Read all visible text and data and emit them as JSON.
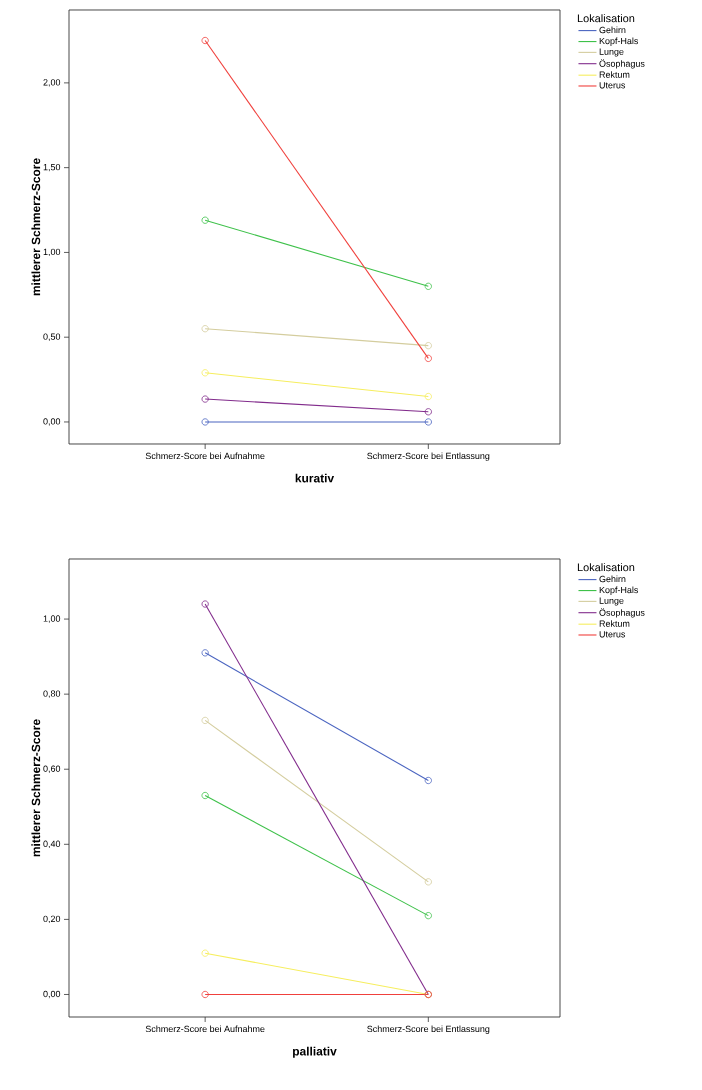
{
  "chart_data": [
    {
      "type": "line",
      "xlabel": "kurativ",
      "ylabel": "mittlerer Schmerz-Score",
      "legend_title": "Lokalisation",
      "legend": "right",
      "marker": "circle",
      "categories": [
        "Schmerz-Score bei Aufnahme",
        "Schmerz-Score bei Entlassung"
      ],
      "ylim": [
        -0.13,
        2.43
      ],
      "yticks": [
        {
          "value": 0,
          "label": "0,00"
        },
        {
          "value": 0.5,
          "label": "0,50"
        },
        {
          "value": 1,
          "label": "1,00"
        },
        {
          "value": 1.5,
          "label": "1,50"
        },
        {
          "value": 2,
          "label": "2,00"
        }
      ],
      "series": [
        {
          "name": "Gehirn",
          "color": "#4a64c0",
          "values": [
            0,
            0
          ]
        },
        {
          "name": "Kopf-Hals",
          "color": "#3ec14a",
          "values": [
            1.19,
            0.8
          ]
        },
        {
          "name": "Lunge",
          "color": "#d4cd9e",
          "values": [
            0.55,
            0.45
          ]
        },
        {
          "name": "Ösophagus",
          "color": "#822c8c",
          "values": [
            0.135,
            0.06
          ]
        },
        {
          "name": "Rektum",
          "color": "#f6ee5e",
          "values": [
            0.29,
            0.15
          ]
        },
        {
          "name": "Uterus",
          "color": "#f0403c",
          "values": [
            2.25,
            0.375
          ]
        }
      ]
    },
    {
      "type": "line",
      "xlabel": "palliativ",
      "ylabel": "mittlerer Schmerz-Score",
      "legend_title": "Lokalisation",
      "legend": "right",
      "marker": "circle",
      "categories": [
        "Schmerz-Score bei Aufnahme",
        "Schmerz-Score bei Entlassung"
      ],
      "ylim": [
        -0.06,
        1.16
      ],
      "yticks": [
        {
          "value": 0,
          "label": "0,00"
        },
        {
          "value": 0.2,
          "label": "0,20"
        },
        {
          "value": 0.4,
          "label": "0,40"
        },
        {
          "value": 0.6,
          "label": "0,60"
        },
        {
          "value": 0.8,
          "label": "0,80"
        },
        {
          "value": 1,
          "label": "1,00"
        }
      ],
      "series": [
        {
          "name": "Gehirn",
          "color": "#4a64c0",
          "values": [
            0.91,
            0.57
          ]
        },
        {
          "name": "Kopf-Hals",
          "color": "#3ec14a",
          "values": [
            0.53,
            0.21
          ]
        },
        {
          "name": "Lunge",
          "color": "#d4cd9e",
          "values": [
            0.73,
            0.3
          ]
        },
        {
          "name": "Ösophagus",
          "color": "#822c8c",
          "values": [
            1.04,
            0
          ]
        },
        {
          "name": "Rektum",
          "color": "#f6ee5e",
          "values": [
            0.11,
            0
          ]
        },
        {
          "name": "Uterus",
          "color": "#f0403c",
          "values": [
            0,
            0
          ]
        }
      ]
    }
  ]
}
